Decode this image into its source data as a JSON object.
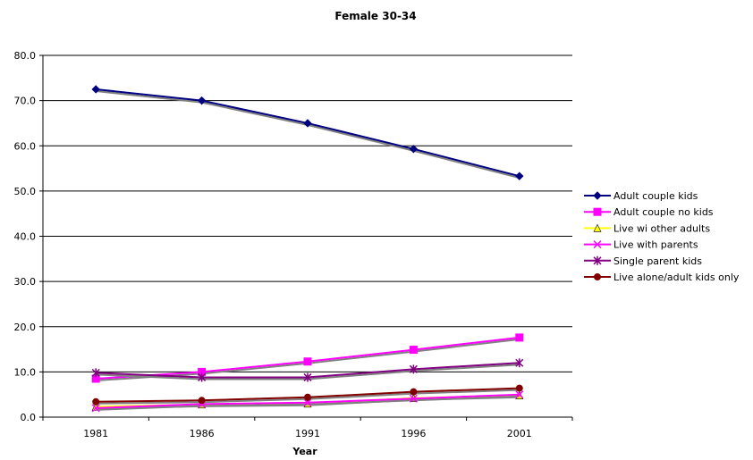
{
  "chart_data": {
    "type": "line",
    "title": "Female 30-34",
    "xlabel": "Year",
    "ylabel": "",
    "ylim": [
      0,
      80
    ],
    "yticks": [
      "0.0",
      "10.0",
      "20.0",
      "30.0",
      "40.0",
      "50.0",
      "60.0",
      "70.0",
      "80.0"
    ],
    "categories": [
      "1981",
      "1986",
      "1991",
      "1996",
      "2001"
    ],
    "grid": true,
    "legend_position": "right",
    "series": [
      {
        "name": "Adult couple kids",
        "color": "#000080",
        "marker": "diamond",
        "values": [
          72.5,
          70.0,
          65.0,
          59.3,
          53.3
        ]
      },
      {
        "name": "Adult couple no kids",
        "color": "#FF00FF",
        "marker": "square",
        "values": [
          8.5,
          10.0,
          12.3,
          14.9,
          17.6
        ]
      },
      {
        "name": "Live wi other adults",
        "color": "#FFFF00",
        "marker": "triangle",
        "values": [
          2.3,
          2.8,
          3.0,
          4.2,
          4.8
        ]
      },
      {
        "name": "Live with parents",
        "color": "#FF00FF",
        "marker": "x",
        "values": [
          2.0,
          2.9,
          3.2,
          4.1,
          5.0
        ]
      },
      {
        "name": "Single parent kids",
        "color": "#800080",
        "marker": "asterisk",
        "values": [
          9.8,
          8.8,
          8.8,
          10.6,
          12.0
        ]
      },
      {
        "name": "Live alone/adult kids only",
        "color": "#800000",
        "marker": "circle",
        "values": [
          3.4,
          3.7,
          4.4,
          5.6,
          6.4
        ]
      }
    ]
  }
}
